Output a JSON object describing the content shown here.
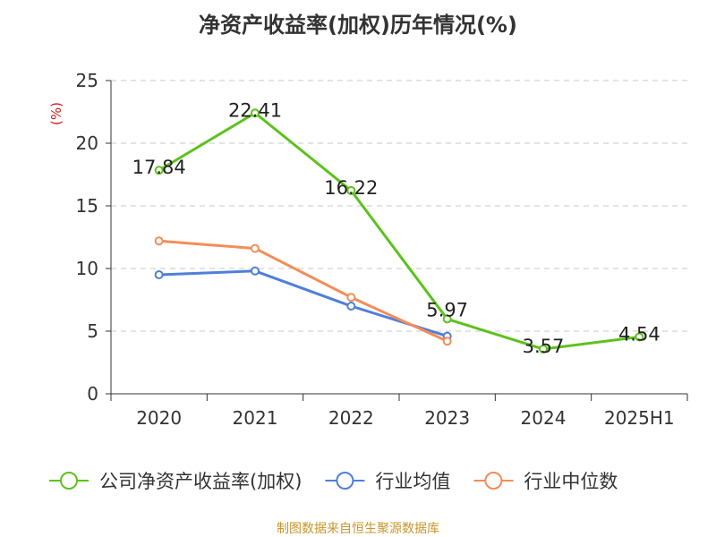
{
  "title": "净资产收益率(加权)历年情况(%)",
  "source": "制图数据来自恒生聚源数据库",
  "chart_data": {
    "type": "line",
    "title": "净资产收益率(加权)历年情况(%)",
    "ylabel": "(%)",
    "xlabel": "",
    "categories": [
      "2020",
      "2021",
      "2022",
      "2023",
      "2024",
      "2025H1"
    ],
    "ylim": [
      0,
      25
    ],
    "yticks": [
      0,
      5,
      10,
      15,
      20,
      25
    ],
    "grid": true,
    "legend_position": "bottom",
    "series": [
      {
        "name": "公司净资产收益率(加权)",
        "color": "#5cc21c",
        "values": [
          17.84,
          22.41,
          16.22,
          5.97,
          3.57,
          4.54
        ],
        "labels": [
          "17.84",
          "22.41",
          "16.22",
          "5.97",
          "3.57",
          "4.54"
        ]
      },
      {
        "name": "行业均值",
        "color": "#4f7fd9",
        "values": [
          9.5,
          9.8,
          7.0,
          4.6,
          null,
          null
        ]
      },
      {
        "name": "行业中位数",
        "color": "#f58c57",
        "values": [
          12.2,
          11.6,
          7.7,
          4.2,
          null,
          null
        ]
      }
    ]
  }
}
